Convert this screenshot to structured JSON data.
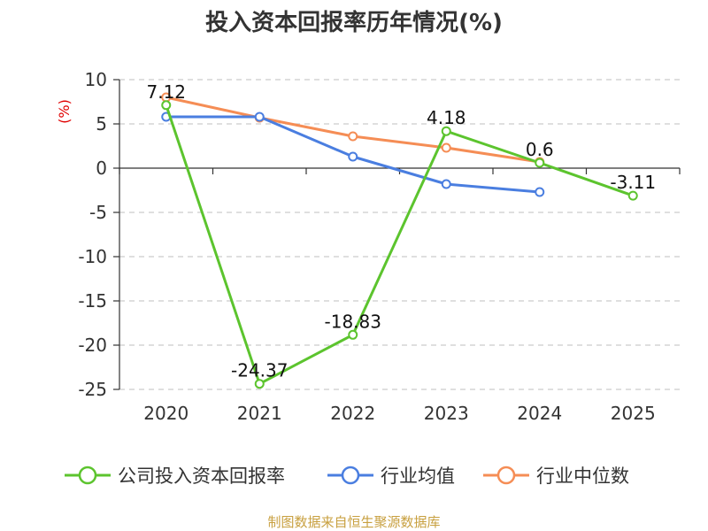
{
  "chart_data": {
    "type": "line",
    "title": "投入资本回报率历年情况(%)",
    "ylabel": "(%)",
    "categories": [
      "2020",
      "2021",
      "2022",
      "2023",
      "2024",
      "2025"
    ],
    "y_ticks": [
      "10",
      "5",
      "0",
      "-5",
      "-10",
      "-15",
      "-20",
      "-25"
    ],
    "ylim": [
      -25,
      10
    ],
    "grid": true,
    "legend_position": "bottom",
    "series": [
      {
        "name": "公司投入资本回报率",
        "color": "#5cc42e",
        "values": [
          7.12,
          -24.37,
          -18.83,
          4.18,
          0.6,
          -3.11
        ],
        "labels": [
          "7.12",
          "-24.37",
          "-18.83",
          "4.18",
          "0.6",
          "-3.11"
        ]
      },
      {
        "name": "行业均值",
        "color": "#4a7ee0",
        "values": [
          5.8,
          5.8,
          1.3,
          -1.8,
          -2.7,
          null
        ]
      },
      {
        "name": "行业中位数",
        "color": "#f58d55",
        "values": [
          8.0,
          5.7,
          3.6,
          2.3,
          0.7,
          null
        ]
      }
    ],
    "source": "制图数据来自恒生聚源数据库"
  }
}
